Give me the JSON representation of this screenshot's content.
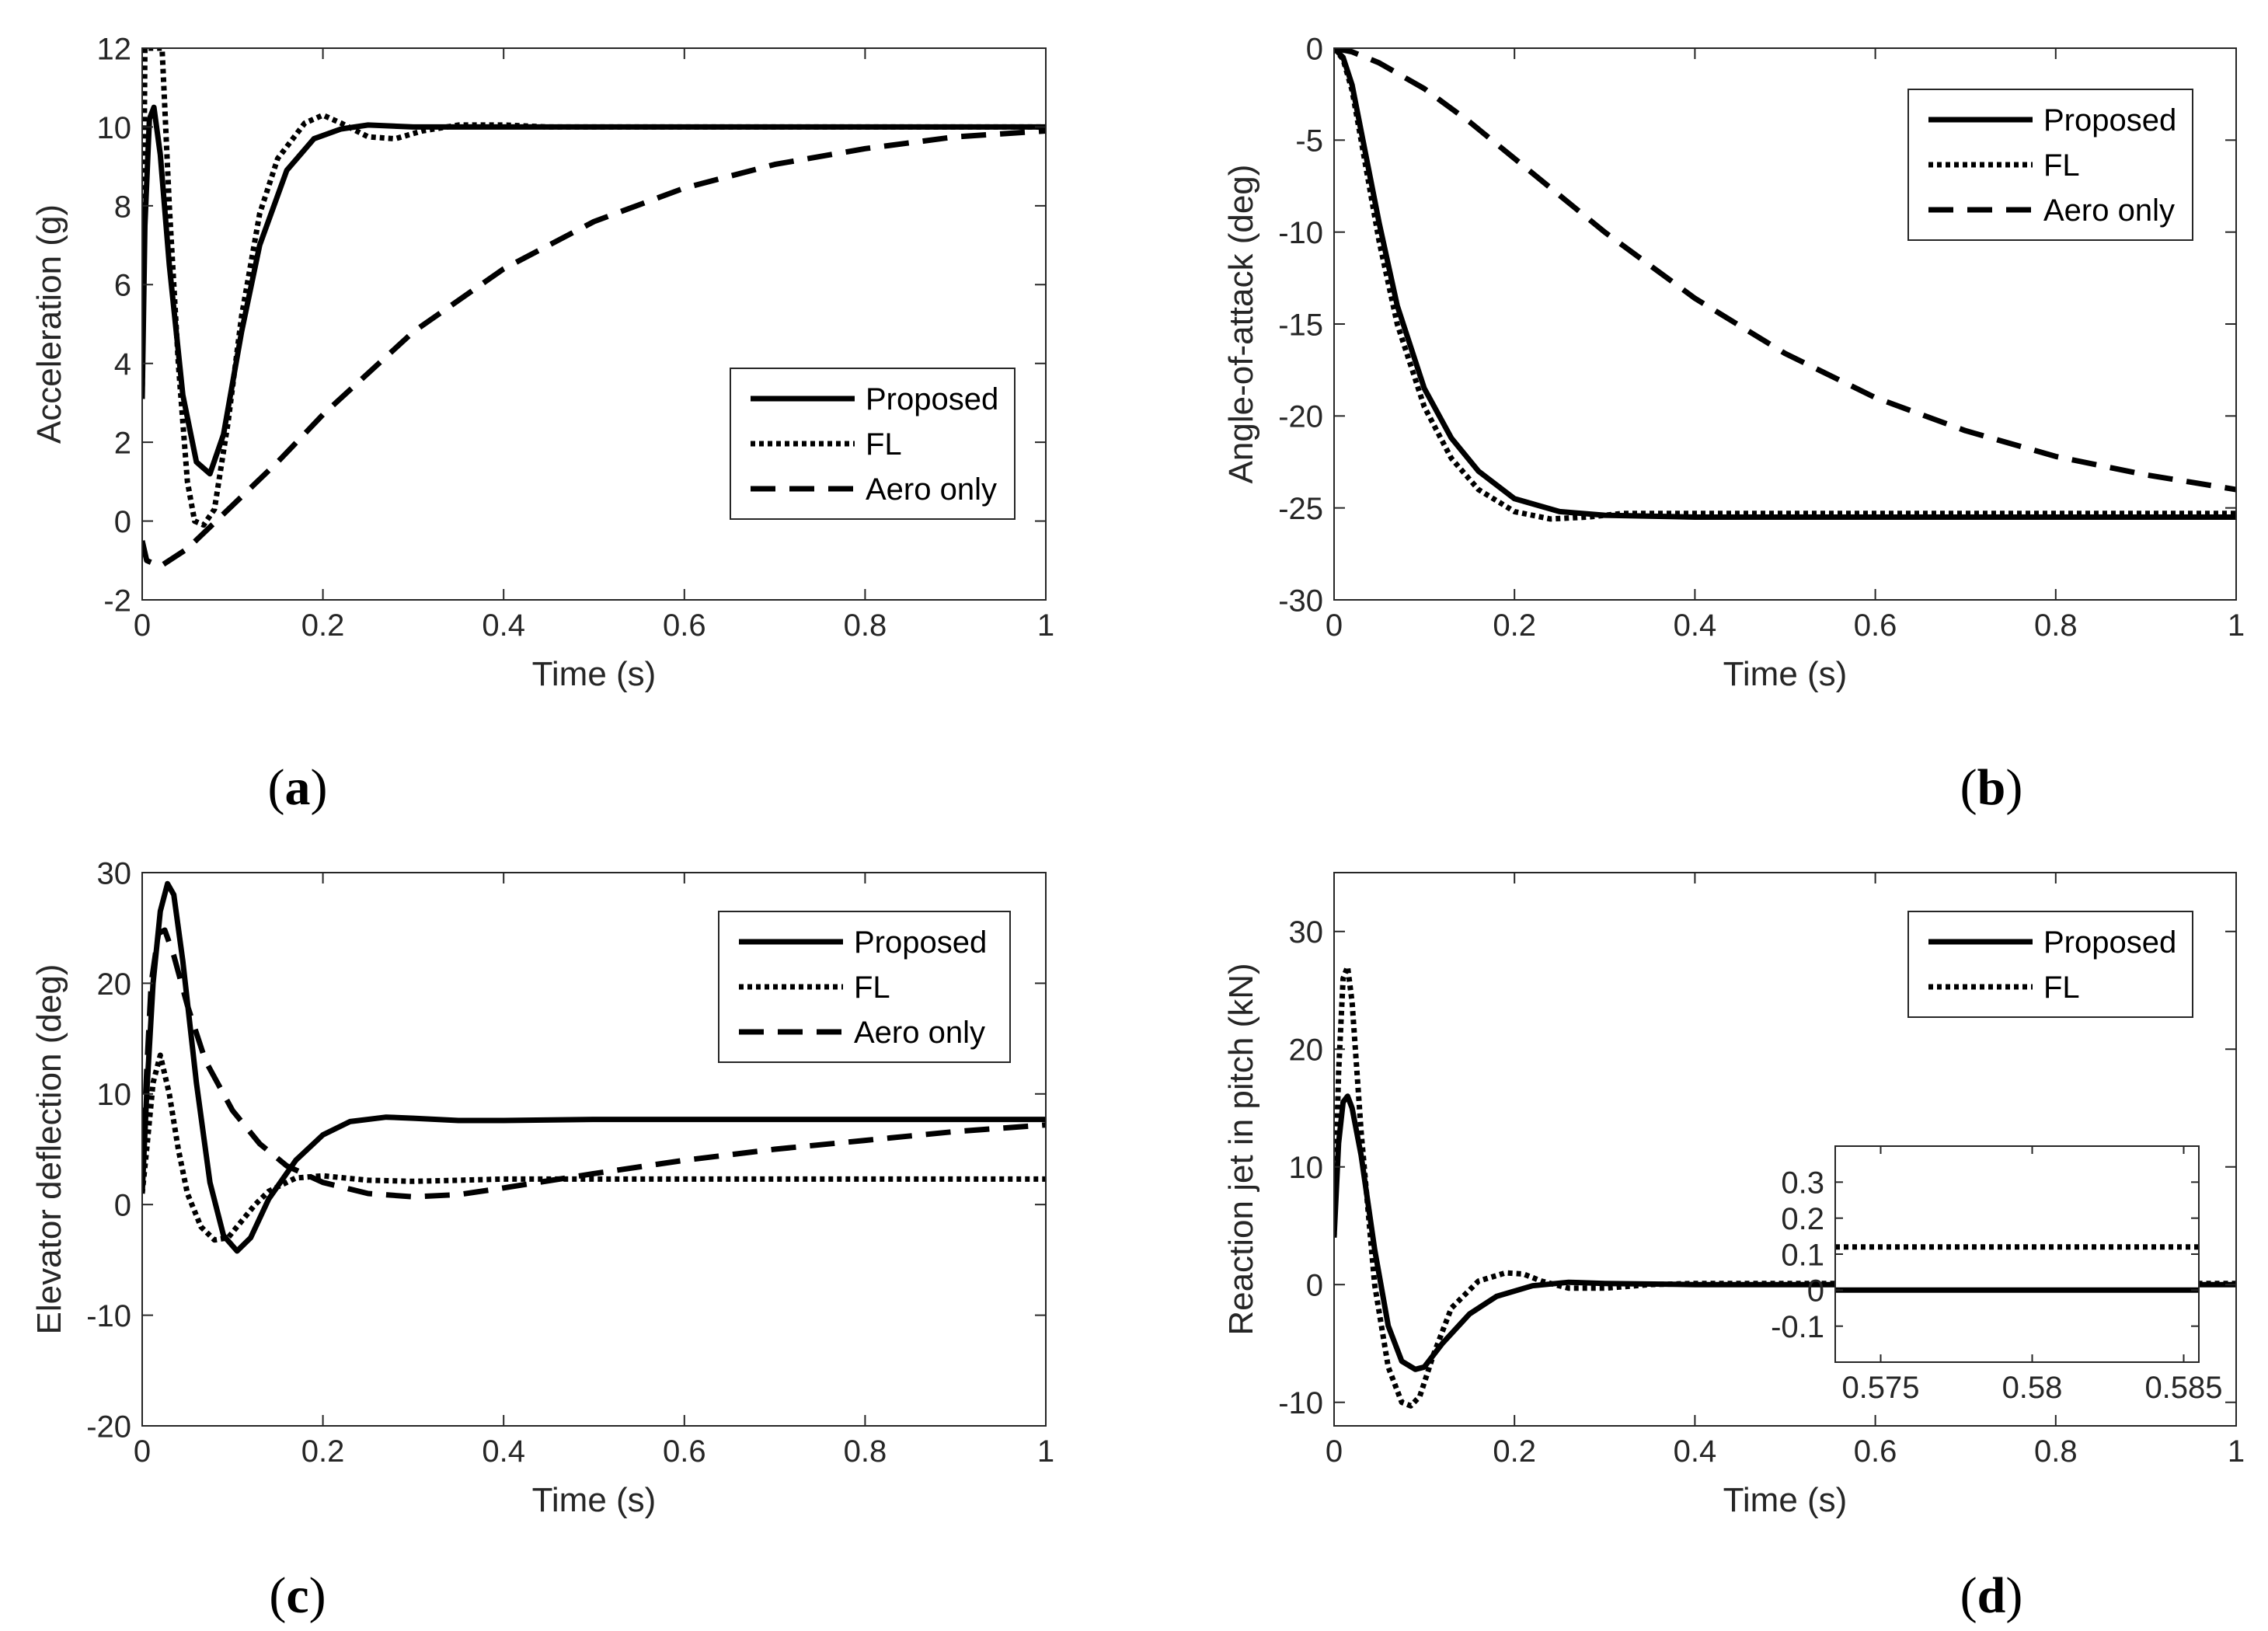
{
  "figure": {
    "panels": [
      {
        "letter": "a"
      },
      {
        "letter": "b"
      },
      {
        "letter": "c"
      },
      {
        "letter": "d"
      }
    ]
  },
  "chart_data": [
    {
      "type": "line",
      "panel": "a",
      "xlabel": "Time (s)",
      "ylabel": "Acceleration (g)",
      "xlim": [
        0,
        1
      ],
      "ylim": [
        -2,
        12
      ],
      "xticks": [
        0,
        0.2,
        0.4,
        0.6,
        0.8,
        1
      ],
      "xtick_labels": [
        "0",
        "0.2",
        "0.4",
        "0.6",
        "0.8",
        "1"
      ],
      "yticks": [
        -2,
        0,
        2,
        4,
        6,
        8,
        10,
        12
      ],
      "ytick_labels": [
        "-2",
        "0",
        "2",
        "4",
        "6",
        "8",
        "10",
        "12"
      ],
      "legend_position": "lower-right",
      "series": [
        {
          "name": "Proposed",
          "style": "solid",
          "x": [
            0,
            0.003,
            0.008,
            0.013,
            0.02,
            0.03,
            0.045,
            0.06,
            0.075,
            0.09,
            0.11,
            0.13,
            0.16,
            0.19,
            0.22,
            0.25,
            0.3,
            0.35,
            0.4,
            0.5,
            0.6,
            0.7,
            0.8,
            0.9,
            1
          ],
          "y": [
            3.1,
            7.5,
            10.2,
            10.5,
            9.3,
            6.5,
            3.2,
            1.5,
            1.2,
            2.2,
            4.8,
            7.0,
            8.9,
            9.7,
            9.95,
            10.05,
            10.0,
            10.0,
            10.0,
            10.0,
            10.0,
            10.0,
            10.0,
            10.0,
            10.0
          ]
        },
        {
          "name": "FL",
          "style": "dotted",
          "x": [
            0,
            0.003,
            0.008,
            0.015,
            0.022,
            0.03,
            0.04,
            0.05,
            0.058,
            0.068,
            0.08,
            0.095,
            0.11,
            0.13,
            0.15,
            0.18,
            0.2,
            0.22,
            0.25,
            0.28,
            0.31,
            0.35,
            0.4,
            0.45,
            0.5,
            0.6,
            0.8,
            1
          ],
          "y": [
            3.2,
            12.0,
            12.0,
            12.0,
            12.0,
            8.0,
            4.0,
            1.0,
            0.0,
            -0.1,
            0.3,
            2.5,
            5.2,
            7.8,
            9.2,
            10.1,
            10.3,
            10.1,
            9.75,
            9.7,
            9.9,
            10.05,
            10.05,
            10.0,
            10.0,
            10.0,
            10.0,
            10.0
          ]
        },
        {
          "name": "Aero only",
          "style": "dashed",
          "x": [
            0,
            0.005,
            0.02,
            0.05,
            0.1,
            0.15,
            0.2,
            0.3,
            0.4,
            0.5,
            0.6,
            0.7,
            0.8,
            0.9,
            1
          ],
          "y": [
            -0.5,
            -1.0,
            -1.15,
            -0.7,
            0.4,
            1.5,
            2.7,
            4.8,
            6.4,
            7.6,
            8.45,
            9.05,
            9.45,
            9.75,
            9.9
          ]
        }
      ]
    },
    {
      "type": "line",
      "panel": "b",
      "xlabel": "Time (s)",
      "ylabel": "Angle-of-attack (deg)",
      "xlim": [
        0,
        1
      ],
      "ylim": [
        -30,
        0
      ],
      "xticks": [
        0,
        0.2,
        0.4,
        0.6,
        0.8,
        1
      ],
      "xtick_labels": [
        "0",
        "0.2",
        "0.4",
        "0.6",
        "0.8",
        "1"
      ],
      "yticks": [
        -30,
        -25,
        -20,
        -15,
        -10,
        -5,
        0
      ],
      "ytick_labels": [
        "-30",
        "-25",
        "-20",
        "-15",
        "-10",
        "-5",
        "0"
      ],
      "legend_position": "top-right",
      "series": [
        {
          "name": "Proposed",
          "style": "solid",
          "x": [
            0,
            0.01,
            0.02,
            0.03,
            0.05,
            0.07,
            0.1,
            0.13,
            0.16,
            0.2,
            0.25,
            0.3,
            0.4,
            0.6,
            0.8,
            1
          ],
          "y": [
            0,
            -0.5,
            -2.0,
            -4.5,
            -9.5,
            -14.0,
            -18.5,
            -21.2,
            -23.0,
            -24.5,
            -25.2,
            -25.4,
            -25.5,
            -25.5,
            -25.5,
            -25.5
          ]
        },
        {
          "name": "FL",
          "style": "dotted",
          "x": [
            0,
            0.01,
            0.02,
            0.03,
            0.05,
            0.07,
            0.1,
            0.13,
            0.16,
            0.2,
            0.24,
            0.28,
            0.32,
            0.4,
            0.6,
            0.8,
            1
          ],
          "y": [
            0,
            -0.6,
            -2.3,
            -5.0,
            -10.5,
            -15.0,
            -19.5,
            -22.3,
            -24.0,
            -25.2,
            -25.6,
            -25.5,
            -25.3,
            -25.3,
            -25.3,
            -25.3,
            -25.3
          ]
        },
        {
          "name": "Aero only",
          "style": "dashed",
          "x": [
            0,
            0.02,
            0.05,
            0.1,
            0.15,
            0.2,
            0.3,
            0.4,
            0.5,
            0.6,
            0.7,
            0.8,
            0.9,
            1
          ],
          "y": [
            0,
            -0.2,
            -0.8,
            -2.2,
            -4.0,
            -6.0,
            -10.0,
            -13.6,
            -16.6,
            -19.0,
            -20.8,
            -22.2,
            -23.2,
            -24.0
          ]
        }
      ]
    },
    {
      "type": "line",
      "panel": "c",
      "xlabel": "Time (s)",
      "ylabel": "Elevator deflection (deg)",
      "xlim": [
        0,
        1
      ],
      "ylim": [
        -20,
        30
      ],
      "xticks": [
        0,
        0.2,
        0.4,
        0.6,
        0.8,
        1
      ],
      "xtick_labels": [
        "0",
        "0.2",
        "0.4",
        "0.6",
        "0.8",
        "1"
      ],
      "yticks": [
        -20,
        -10,
        0,
        10,
        20,
        30
      ],
      "ytick_labels": [
        "-20",
        "-10",
        "0",
        "10",
        "20",
        "30"
      ],
      "legend_position": "top-right",
      "series": [
        {
          "name": "Proposed",
          "style": "solid",
          "x": [
            0,
            0.005,
            0.012,
            0.02,
            0.028,
            0.035,
            0.045,
            0.06,
            0.075,
            0.09,
            0.105,
            0.12,
            0.14,
            0.17,
            0.2,
            0.23,
            0.27,
            0.3,
            0.35,
            0.4,
            0.5,
            0.6,
            0.8,
            1
          ],
          "y": [
            1.0,
            10.0,
            20.0,
            26.5,
            29.0,
            28.0,
            22.0,
            11.0,
            2.0,
            -2.8,
            -4.2,
            -3.0,
            0.5,
            4.0,
            6.3,
            7.5,
            7.9,
            7.8,
            7.6,
            7.6,
            7.7,
            7.7,
            7.7,
            7.7
          ]
        },
        {
          "name": "FL",
          "style": "dotted",
          "x": [
            0,
            0.005,
            0.012,
            0.02,
            0.03,
            0.04,
            0.05,
            0.065,
            0.08,
            0.095,
            0.11,
            0.125,
            0.14,
            0.17,
            0.2,
            0.25,
            0.3,
            0.35,
            0.4,
            0.5,
            0.6,
            0.8,
            1
          ],
          "y": [
            1.0,
            5.0,
            11.0,
            13.5,
            10.0,
            5.0,
            1.0,
            -2.0,
            -3.2,
            -3.0,
            -1.5,
            0.0,
            1.2,
            2.4,
            2.6,
            2.2,
            2.1,
            2.2,
            2.3,
            2.3,
            2.3,
            2.3,
            2.3
          ]
        },
        {
          "name": "Aero only",
          "style": "dashed",
          "x": [
            0,
            0.005,
            0.01,
            0.018,
            0.025,
            0.035,
            0.05,
            0.07,
            0.1,
            0.13,
            0.16,
            0.2,
            0.25,
            0.3,
            0.35,
            0.4,
            0.5,
            0.6,
            0.7,
            0.8,
            0.9,
            1
          ],
          "y": [
            3.0,
            12.0,
            20.0,
            24.5,
            24.8,
            22.5,
            18.0,
            13.0,
            8.5,
            5.5,
            3.5,
            2.0,
            1.0,
            0.7,
            0.9,
            1.5,
            2.8,
            4.0,
            5.0,
            5.8,
            6.6,
            7.2
          ]
        }
      ]
    },
    {
      "type": "line",
      "panel": "d",
      "xlabel": "Time (s)",
      "ylabel": "Reaction jet in pitch (kN)",
      "xlim": [
        0,
        1
      ],
      "ylim": [
        -12,
        35
      ],
      "xticks": [
        0,
        0.2,
        0.4,
        0.6,
        0.8,
        1
      ],
      "xtick_labels": [
        "0",
        "0.2",
        "0.4",
        "0.6",
        "0.8",
        "1"
      ],
      "yticks": [
        -10,
        0,
        10,
        20,
        30
      ],
      "ytick_labels": [
        "-10",
        "0",
        "10",
        "20",
        "30"
      ],
      "legend_position": "top-right",
      "series": [
        {
          "name": "Proposed",
          "style": "solid",
          "x": [
            0,
            0.005,
            0.01,
            0.015,
            0.02,
            0.03,
            0.045,
            0.06,
            0.075,
            0.09,
            0.1,
            0.12,
            0.15,
            0.18,
            0.22,
            0.26,
            0.3,
            0.4,
            0.6,
            0.8,
            1
          ],
          "y": [
            4.0,
            12.0,
            15.5,
            16.0,
            15.0,
            11.0,
            3.0,
            -3.5,
            -6.5,
            -7.2,
            -7.0,
            -5.0,
            -2.5,
            -1.0,
            -0.1,
            0.2,
            0.1,
            0.0,
            0.0,
            0.0,
            0.0
          ]
        },
        {
          "name": "FL",
          "style": "dotted",
          "x": [
            0,
            0.005,
            0.01,
            0.015,
            0.02,
            0.03,
            0.045,
            0.06,
            0.075,
            0.085,
            0.095,
            0.11,
            0.13,
            0.16,
            0.19,
            0.21,
            0.23,
            0.26,
            0.3,
            0.35,
            0.4,
            0.6,
            0.8,
            1
          ],
          "y": [
            4.0,
            18.0,
            26.0,
            27.0,
            24.0,
            13.0,
            0.0,
            -7.0,
            -10.0,
            -10.3,
            -9.5,
            -6.0,
            -2.0,
            0.3,
            1.0,
            0.9,
            0.3,
            -0.3,
            -0.3,
            0.0,
            0.1,
            0.1,
            0.1,
            0.1
          ]
        }
      ],
      "inset": {
        "xlim": [
          0.5735,
          0.5855
        ],
        "ylim": [
          -0.2,
          0.4
        ],
        "xticks": [
          0.575,
          0.58,
          0.585
        ],
        "xtick_labels": [
          "0.575",
          "0.58",
          "0.585"
        ],
        "yticks": [
          -0.1,
          0,
          0.1,
          0.2,
          0.3
        ],
        "ytick_labels": [
          "-0.1",
          "0",
          "0.1",
          "0.2",
          "0.3"
        ],
        "series": [
          {
            "name": "Proposed",
            "style": "solid",
            "x": [
              0.5735,
              0.5855
            ],
            "y": [
              0.0,
              0.0
            ]
          },
          {
            "name": "FL",
            "style": "dotted",
            "x": [
              0.5735,
              0.5855
            ],
            "y": [
              0.12,
              0.12
            ]
          }
        ]
      }
    }
  ]
}
